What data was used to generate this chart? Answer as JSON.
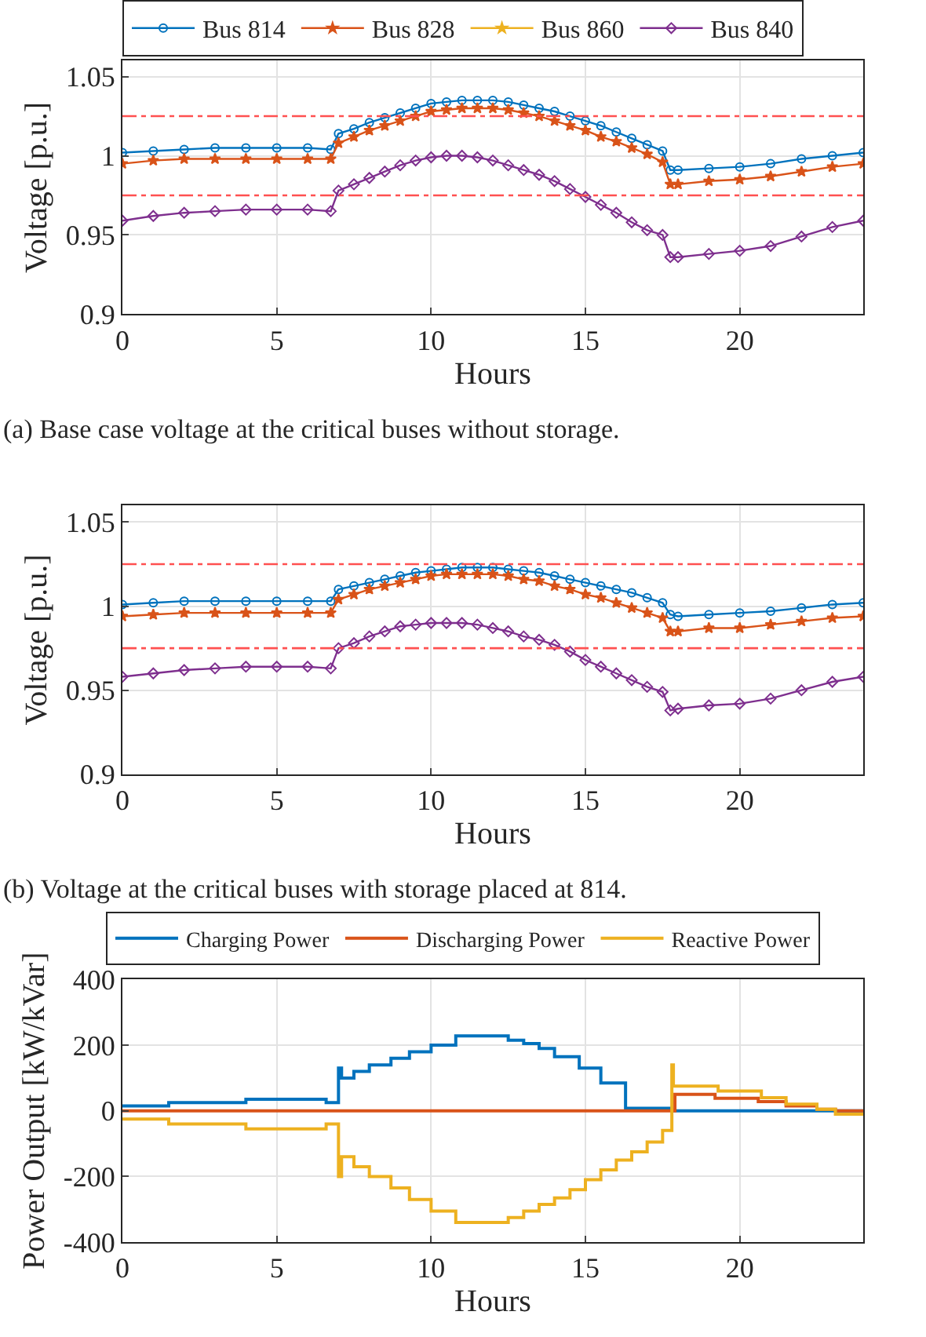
{
  "chart_data": [
    {
      "type": "line",
      "xlabel": "Hours",
      "ylabel": "Voltage [p.u.]",
      "annotations": [
        "(a) Base case voltage at the critical buses without storage."
      ],
      "x": [
        0,
        1,
        2,
        3,
        4,
        5,
        6,
        6.75,
        7,
        7.5,
        8,
        8.5,
        9,
        9.5,
        10,
        10.5,
        11,
        11.5,
        12,
        12.5,
        13,
        13.5,
        14,
        14.5,
        15,
        15.5,
        16,
        16.5,
        17,
        17.5,
        17.75,
        18,
        19,
        20,
        21,
        22,
        23,
        24
      ],
      "xlim": [
        0,
        24
      ],
      "xticks": [
        0,
        5,
        10,
        15,
        20
      ],
      "ylim": [
        0.9,
        1.06
      ],
      "yticks": [
        0.9,
        0.95,
        1,
        1.05
      ],
      "grid": true,
      "legend": "top",
      "ref_lines": [
        {
          "axis": "y",
          "value": 1.025,
          "color": "#ff5050",
          "line_style": "dashdot"
        },
        {
          "axis": "y",
          "value": 0.975,
          "color": "#ff5050",
          "line_style": "dashdot"
        }
      ],
      "series": [
        {
          "name": "Bus 814",
          "color": "#0072bd",
          "marker": "circle",
          "values": [
            1.002,
            1.003,
            1.004,
            1.005,
            1.005,
            1.005,
            1.005,
            1.004,
            1.014,
            1.017,
            1.021,
            1.024,
            1.027,
            1.03,
            1.033,
            1.034,
            1.035,
            1.035,
            1.035,
            1.034,
            1.032,
            1.03,
            1.028,
            1.025,
            1.022,
            1.019,
            1.015,
            1.011,
            1.007,
            1.003,
            0.991,
            0.991,
            0.992,
            0.993,
            0.995,
            0.998,
            1.0,
            1.002
          ]
        },
        {
          "name": "Bus 828",
          "color": "#d95319",
          "marker": "star",
          "values": [
            0.995,
            0.997,
            0.998,
            0.998,
            0.998,
            0.998,
            0.998,
            0.998,
            1.008,
            1.012,
            1.016,
            1.019,
            1.022,
            1.025,
            1.028,
            1.029,
            1.03,
            1.03,
            1.03,
            1.029,
            1.027,
            1.025,
            1.022,
            1.019,
            1.016,
            1.012,
            1.009,
            1.005,
            1.001,
            0.996,
            0.982,
            0.982,
            0.984,
            0.985,
            0.987,
            0.99,
            0.993,
            0.995
          ]
        },
        {
          "name": "Bus 860",
          "color": "#edb120",
          "marker": "star",
          "values": [
            null,
            null,
            null,
            null,
            null,
            null,
            null,
            null,
            null,
            null,
            null,
            null,
            null,
            null,
            null,
            null,
            null,
            null,
            null,
            null,
            null,
            null,
            null,
            null,
            null,
            null,
            null,
            null,
            null,
            null,
            null,
            null,
            null,
            null,
            null,
            null,
            null,
            null
          ]
        },
        {
          "name": "Bus 840",
          "color": "#7e2f8e",
          "marker": "diamond",
          "values": [
            0.959,
            0.962,
            0.964,
            0.965,
            0.966,
            0.966,
            0.966,
            0.965,
            0.978,
            0.982,
            0.986,
            0.99,
            0.994,
            0.997,
            0.999,
            1.0,
            1.0,
            0.999,
            0.997,
            0.994,
            0.991,
            0.988,
            0.984,
            0.979,
            0.974,
            0.969,
            0.964,
            0.958,
            0.953,
            0.95,
            0.936,
            0.936,
            0.938,
            0.94,
            0.943,
            0.949,
            0.955,
            0.959
          ]
        }
      ]
    },
    {
      "type": "line",
      "xlabel": "Hours",
      "ylabel": "Voltage [p.u.]",
      "annotations": [
        "(b) Voltage at the critical buses with storage placed at 814."
      ],
      "x": [
        0,
        1,
        2,
        3,
        4,
        5,
        6,
        6.75,
        7,
        7.5,
        8,
        8.5,
        9,
        9.5,
        10,
        10.5,
        11,
        11.5,
        12,
        12.5,
        13,
        13.5,
        14,
        14.5,
        15,
        15.5,
        16,
        16.5,
        17,
        17.5,
        17.75,
        18,
        19,
        20,
        21,
        22,
        23,
        24
      ],
      "xlim": [
        0,
        24
      ],
      "xticks": [
        0,
        5,
        10,
        15,
        20
      ],
      "ylim": [
        0.9,
        1.06
      ],
      "yticks": [
        0.9,
        0.95,
        1,
        1.05
      ],
      "grid": true,
      "ref_lines": [
        {
          "axis": "y",
          "value": 1.025,
          "color": "#ff5050",
          "line_style": "dashdot"
        },
        {
          "axis": "y",
          "value": 0.975,
          "color": "#ff5050",
          "line_style": "dashdot"
        }
      ],
      "series": [
        {
          "color": "#0072bd",
          "marker": "circle",
          "values": [
            1.001,
            1.002,
            1.003,
            1.003,
            1.003,
            1.003,
            1.003,
            1.003,
            1.01,
            1.012,
            1.014,
            1.016,
            1.018,
            1.02,
            1.021,
            1.022,
            1.023,
            1.023,
            1.023,
            1.022,
            1.021,
            1.02,
            1.018,
            1.016,
            1.014,
            1.012,
            1.01,
            1.008,
            1.005,
            1.002,
            0.995,
            0.994,
            0.995,
            0.996,
            0.997,
            0.999,
            1.001,
            1.002
          ]
        },
        {
          "color": "#d95319",
          "marker": "star",
          "values": [
            0.994,
            0.995,
            0.996,
            0.996,
            0.996,
            0.996,
            0.996,
            0.996,
            1.004,
            1.007,
            1.01,
            1.012,
            1.014,
            1.016,
            1.018,
            1.019,
            1.019,
            1.019,
            1.019,
            1.018,
            1.016,
            1.015,
            1.012,
            1.01,
            1.007,
            1.005,
            1.002,
            0.999,
            0.996,
            0.993,
            0.985,
            0.985,
            0.987,
            0.987,
            0.989,
            0.991,
            0.993,
            0.994
          ]
        },
        {
          "color": "#7e2f8e",
          "marker": "diamond",
          "values": [
            0.958,
            0.96,
            0.962,
            0.963,
            0.964,
            0.964,
            0.964,
            0.963,
            0.975,
            0.978,
            0.982,
            0.985,
            0.988,
            0.989,
            0.99,
            0.99,
            0.99,
            0.989,
            0.987,
            0.985,
            0.982,
            0.98,
            0.977,
            0.973,
            0.968,
            0.964,
            0.96,
            0.956,
            0.952,
            0.949,
            0.938,
            0.939,
            0.941,
            0.942,
            0.945,
            0.95,
            0.955,
            0.958
          ]
        }
      ]
    },
    {
      "type": "step",
      "xlabel": "Hours",
      "ylabel": "Power Output [kW/kVar]",
      "xlim": [
        0,
        24
      ],
      "xticks": [
        0,
        5,
        10,
        15,
        20
      ],
      "ylim": [
        -400,
        400
      ],
      "yticks": [
        -400,
        -200,
        0,
        200,
        400
      ],
      "grid": true,
      "legend": "top",
      "series": [
        {
          "name": "Charging Power",
          "color": "#0072bd",
          "x": [
            0,
            1.5,
            4,
            6.6,
            7,
            7.1,
            7.5,
            8,
            8.7,
            9.3,
            10,
            10.8,
            12.5,
            13,
            13.5,
            14,
            14.8,
            15.5,
            16.3,
            17.8,
            24
          ],
          "values": [
            15,
            25,
            35,
            25,
            130,
            100,
            120,
            140,
            160,
            180,
            200,
            228,
            215,
            205,
            190,
            165,
            130,
            85,
            8,
            0,
            0
          ]
        },
        {
          "name": "Discharging Power",
          "color": "#d95319",
          "x": [
            0,
            17.9,
            19.2,
            20.6,
            21.5,
            22.5,
            23.1,
            24
          ],
          "values": [
            0,
            50,
            38,
            28,
            15,
            5,
            0,
            0
          ]
        },
        {
          "name": "Reactive Power",
          "color": "#edb120",
          "x": [
            0,
            1.5,
            4,
            6.6,
            7,
            7.1,
            7.5,
            8,
            8.7,
            9.3,
            10,
            10.8,
            12.5,
            13,
            13.5,
            14,
            14.5,
            15,
            15.5,
            16,
            16.5,
            17,
            17.5,
            17.8,
            17.85,
            19.3,
            20.7,
            21.5,
            22.5,
            23.1,
            24
          ],
          "values": [
            -25,
            -40,
            -55,
            -40,
            -200,
            -140,
            -170,
            -200,
            -235,
            -270,
            -305,
            -340,
            -325,
            -305,
            -285,
            -265,
            -240,
            -210,
            -180,
            -150,
            -125,
            -95,
            -60,
            140,
            75,
            60,
            40,
            20,
            5,
            -10,
            -10
          ]
        }
      ]
    }
  ]
}
